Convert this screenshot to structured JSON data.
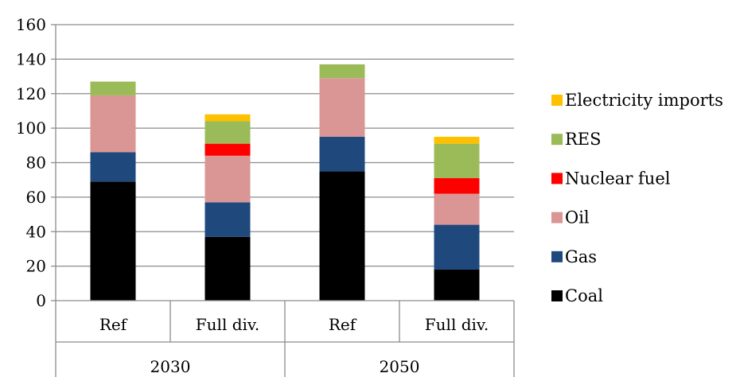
{
  "chart_data": {
    "type": "bar",
    "stacked": true,
    "title": "",
    "xlabel": "",
    "ylabel": "",
    "ylim": [
      0,
      160
    ],
    "yticks": [
      0,
      20,
      40,
      60,
      80,
      100,
      120,
      140,
      160
    ],
    "grid": true,
    "legend_position": "right",
    "groups": [
      {
        "label": "2030",
        "categories": [
          "Ref",
          "Full div."
        ]
      },
      {
        "label": "2050",
        "categories": [
          "Ref",
          "Full div."
        ]
      }
    ],
    "categories": [
      "Ref",
      "Full div.",
      "Ref",
      "Full div."
    ],
    "series": [
      {
        "name": "Coal",
        "color": "#000000",
        "values": [
          69,
          37,
          75,
          18
        ]
      },
      {
        "name": "Gas",
        "color": "#1f497d",
        "values": [
          17,
          20,
          20,
          26
        ]
      },
      {
        "name": "Oil",
        "color": "#d99694",
        "values": [
          33,
          27,
          34,
          18
        ]
      },
      {
        "name": "Nuclear fuel",
        "color": "#ff0000",
        "values": [
          0,
          7,
          0,
          9
        ]
      },
      {
        "name": "RES",
        "color": "#9bbb59",
        "values": [
          8,
          13,
          8,
          20
        ]
      },
      {
        "name": "Electricity imports",
        "color": "#ffc000",
        "values": [
          0,
          4,
          0,
          4
        ]
      }
    ]
  }
}
